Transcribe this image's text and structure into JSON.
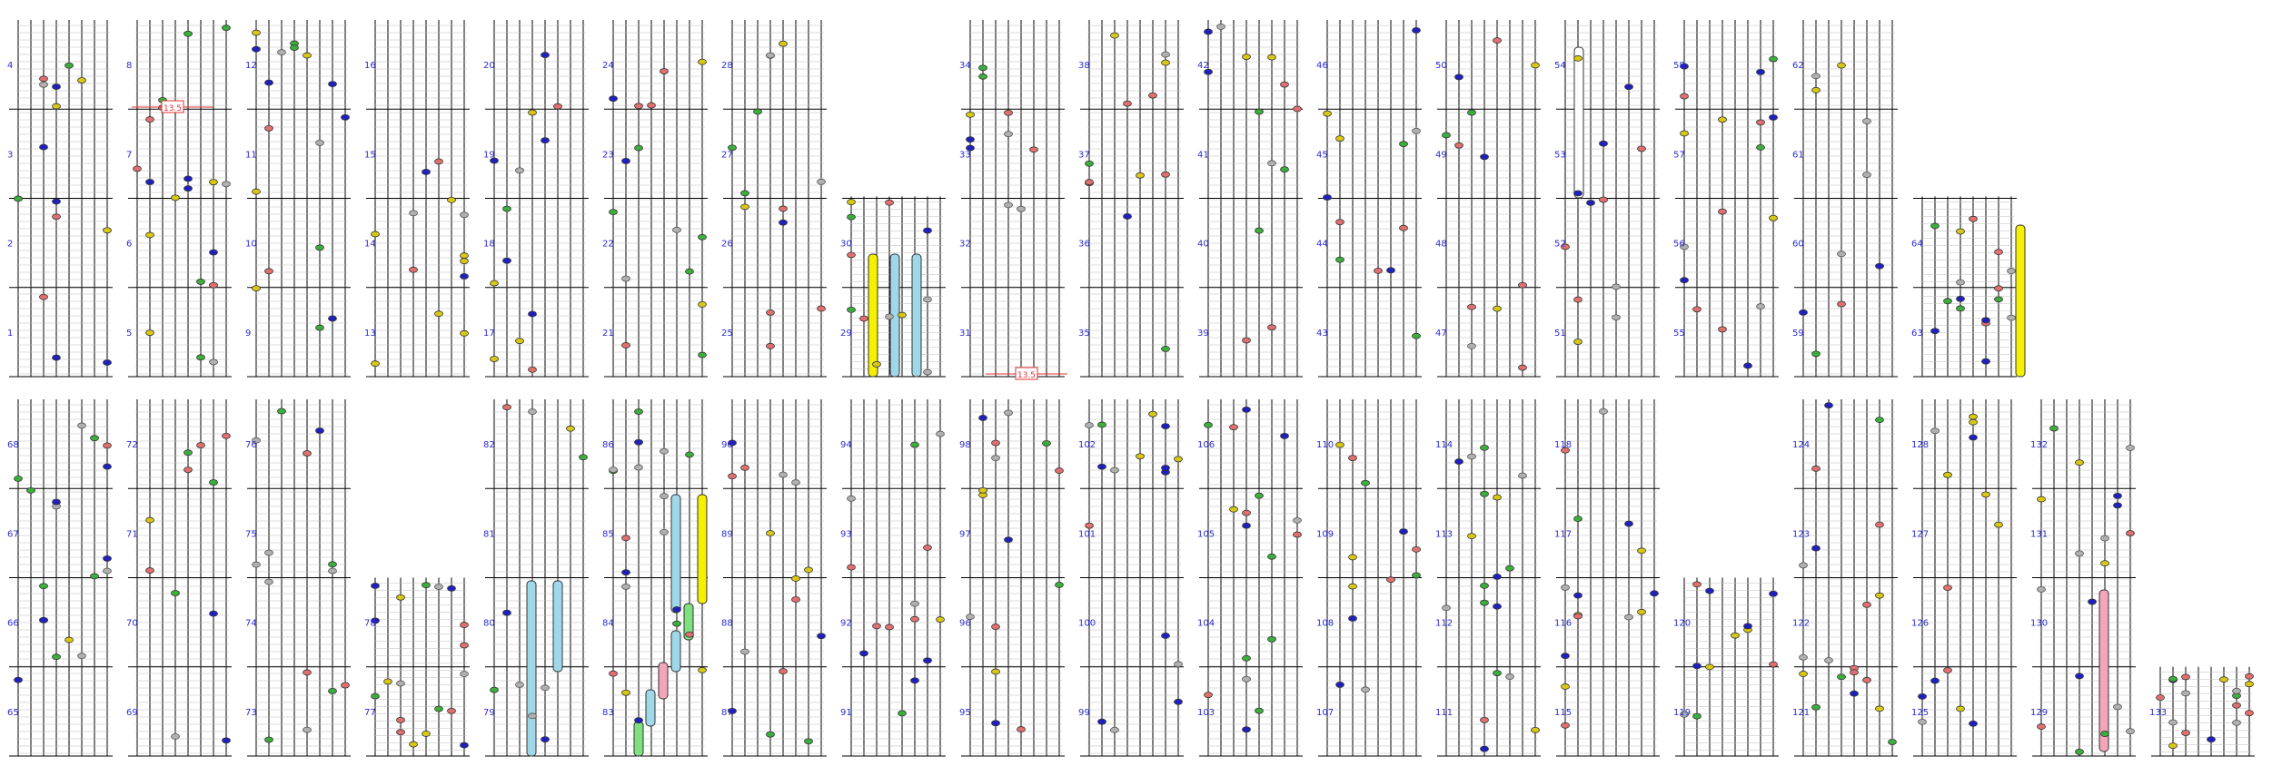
{
  "title": "",
  "colors": {
    "grid": "#000000",
    "hairline": "#bdbdbd",
    "measure_number": "#2b2bd6",
    "note_blue": "#2020c0",
    "note_green": "#3cae3c",
    "note_yellow": "#d8c814",
    "note_red": "#e07070",
    "note_gray": "#b0b0b0",
    "bar_cyan": "#9fd8e8",
    "bar_yellow": "#f4f000",
    "bar_pink": "#f3a6b8",
    "bar_green": "#7ee07e",
    "annotation_red": "#e03030"
  },
  "rows": [
    {
      "measures": [
        {
          "top": "4",
          "upper_mid": "3",
          "lower_mid": "2",
          "bottom": "1"
        },
        {
          "top": "8",
          "upper_mid": "7",
          "lower_mid": "6",
          "bottom": "5"
        },
        {
          "top": "12",
          "upper_mid": "11",
          "lower_mid": "10",
          "bottom": "9"
        },
        {
          "top": "16",
          "upper_mid": "15",
          "lower_mid": "14",
          "bottom": "13"
        },
        {
          "top": "20",
          "upper_mid": "19",
          "lower_mid": "18",
          "bottom": "17"
        },
        {
          "top": "24",
          "upper_mid": "23",
          "lower_mid": "22",
          "bottom": "21"
        },
        {
          "top": "28",
          "upper_mid": "27",
          "lower_mid": "26",
          "bottom": "25"
        },
        {
          "top": "",
          "upper_mid": "",
          "lower_mid": "30",
          "bottom": "29"
        },
        {
          "top": "34",
          "upper_mid": "33",
          "lower_mid": "32",
          "bottom": "31"
        },
        {
          "top": "38",
          "upper_mid": "37",
          "lower_mid": "36",
          "bottom": "35"
        },
        {
          "top": "42",
          "upper_mid": "41",
          "lower_mid": "40",
          "bottom": "39"
        },
        {
          "top": "46",
          "upper_mid": "45",
          "lower_mid": "44",
          "bottom": "43"
        },
        {
          "top": "50",
          "upper_mid": "49",
          "lower_mid": "48",
          "bottom": "47"
        },
        {
          "top": "54",
          "upper_mid": "53",
          "lower_mid": "52",
          "bottom": "51"
        },
        {
          "top": "58",
          "upper_mid": "57",
          "lower_mid": "56",
          "bottom": "55"
        },
        {
          "top": "62",
          "upper_mid": "61",
          "lower_mid": "60",
          "bottom": "59"
        },
        {
          "top": "",
          "upper_mid": "",
          "lower_mid": "64",
          "bottom": "63"
        }
      ]
    },
    {
      "measures": [
        {
          "top": "68",
          "upper_mid": "67",
          "lower_mid": "66",
          "bottom": "65"
        },
        {
          "top": "72",
          "upper_mid": "71",
          "lower_mid": "70",
          "bottom": "69"
        },
        {
          "top": "76",
          "upper_mid": "75",
          "lower_mid": "74",
          "bottom": "73"
        },
        {
          "top": "",
          "upper_mid": "",
          "lower_mid": "78",
          "bottom": "77"
        },
        {
          "top": "82",
          "upper_mid": "81",
          "lower_mid": "80",
          "bottom": "79"
        },
        {
          "top": "86",
          "upper_mid": "85",
          "lower_mid": "84",
          "bottom": "83"
        },
        {
          "top": "90",
          "upper_mid": "89",
          "lower_mid": "88",
          "bottom": "87"
        },
        {
          "top": "94",
          "upper_mid": "93",
          "lower_mid": "92",
          "bottom": "91"
        },
        {
          "top": "98",
          "upper_mid": "97",
          "lower_mid": "96",
          "bottom": "95"
        },
        {
          "top": "102",
          "upper_mid": "101",
          "lower_mid": "100",
          "bottom": "99"
        },
        {
          "top": "106",
          "upper_mid": "105",
          "lower_mid": "104",
          "bottom": "103"
        },
        {
          "top": "110",
          "upper_mid": "109",
          "lower_mid": "108",
          "bottom": "107"
        },
        {
          "top": "114",
          "upper_mid": "113",
          "lower_mid": "112",
          "bottom": "111"
        },
        {
          "top": "118",
          "upper_mid": "117",
          "lower_mid": "116",
          "bottom": "115"
        },
        {
          "top": "",
          "upper_mid": "",
          "lower_mid": "120",
          "bottom": "119"
        },
        {
          "top": "124",
          "upper_mid": "123",
          "lower_mid": "122",
          "bottom": "121"
        },
        {
          "top": "128",
          "upper_mid": "127",
          "lower_mid": "126",
          "bottom": "125"
        },
        {
          "top": "132",
          "upper_mid": "131",
          "lower_mid": "130",
          "bottom": "129"
        },
        {
          "top": "",
          "upper_mid": "",
          "lower_mid": "",
          "bottom": "133"
        }
      ]
    }
  ],
  "annotations": [
    {
      "text": "13.5",
      "color": "#e03030"
    },
    {
      "text": "13.5",
      "color": "#e03030"
    }
  ]
}
